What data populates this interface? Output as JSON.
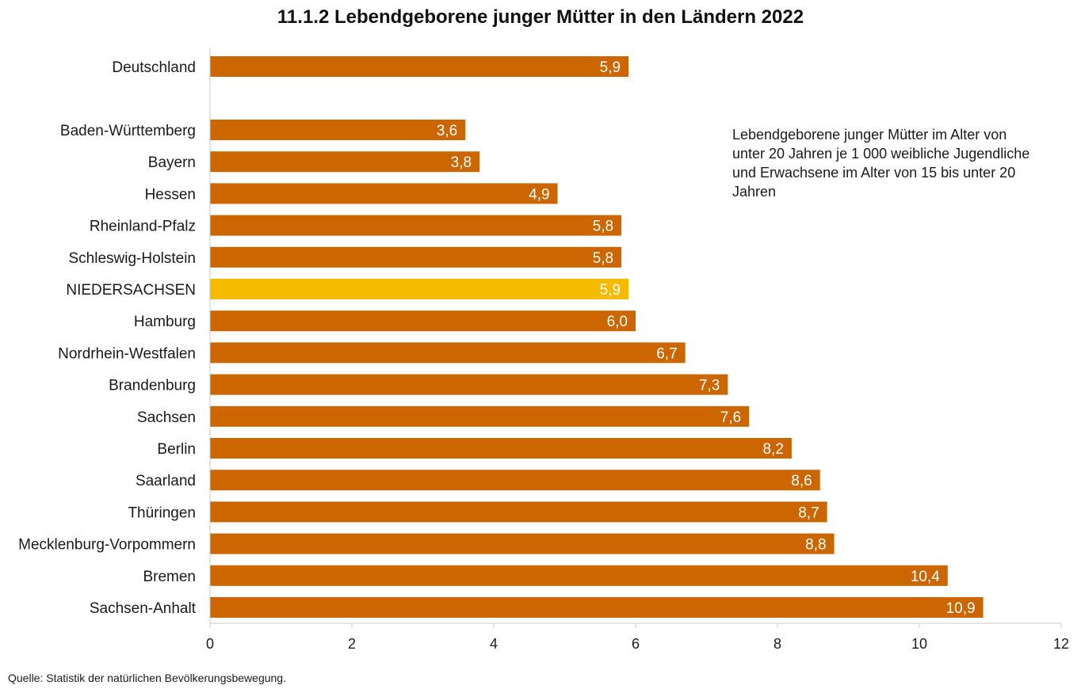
{
  "chart_data": {
    "type": "bar",
    "orientation": "horizontal",
    "title": "11.1.2 Lebendgeborene junger Mütter in den Ländern 2022",
    "note": "Lebendgeborene junger Mütter im Alter von unter 20 Jahren je 1 000 weibliche Jugendliche und Erwachsene im Alter von 15 bis unter 20 Jahren",
    "source": "Quelle: Statistik der natürlichen Bevölkerungsbewegung.",
    "xlim": [
      0,
      12
    ],
    "xticks": [
      0,
      2,
      4,
      6,
      8,
      10,
      12
    ],
    "grid": false,
    "categories": [
      "Deutschland",
      "Baden-Württemberg",
      "Bayern",
      "Hessen",
      "Rheinland-Pfalz",
      "Schleswig-Holstein",
      "NIEDERSACHSEN",
      "Hamburg",
      "Nordrhein-Westfalen",
      "Brandenburg",
      "Sachsen",
      "Berlin",
      "Saarland",
      "Thüringen",
      "Mecklenburg-Vorpommern",
      "Bremen",
      "Sachsen-Anhalt"
    ],
    "values": [
      5.9,
      3.6,
      3.8,
      4.9,
      5.8,
      5.8,
      5.9,
      6.0,
      6.7,
      7.3,
      7.6,
      8.2,
      8.6,
      8.7,
      8.8,
      10.4,
      10.9
    ],
    "value_labels": [
      "5,9",
      "3,6",
      "3,8",
      "4,9",
      "5,8",
      "5,8",
      "5,9",
      "6,0",
      "6,7",
      "7,3",
      "7,6",
      "8,2",
      "8,6",
      "8,7",
      "8,8",
      "10,4",
      "10,9"
    ],
    "highlight": "NIEDERSACHSEN",
    "colors": {
      "bar": "#cc6600",
      "highlight": "#f5bb00",
      "axis": "#c8c8c8"
    }
  }
}
